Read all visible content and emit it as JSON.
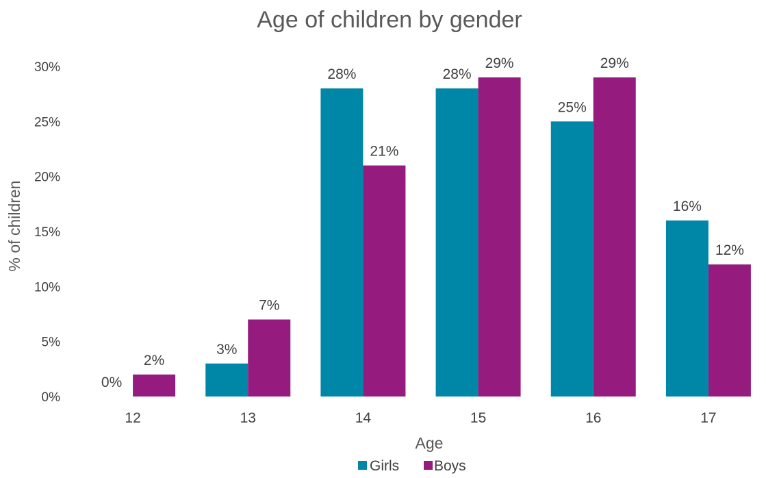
{
  "chart_data": {
    "type": "bar",
    "title": "Age of children by gender",
    "xlabel": "Age",
    "ylabel": "% of children",
    "categories": [
      "12",
      "13",
      "14",
      "15",
      "16",
      "17"
    ],
    "series": [
      {
        "name": "Girls",
        "color": "#0087A8",
        "values": [
          0,
          3,
          28,
          28,
          25,
          16
        ],
        "labels": [
          "0%",
          "3%",
          "28%",
          "28%",
          "25%",
          "16%"
        ]
      },
      {
        "name": "Boys",
        "color": "#951B7E",
        "values": [
          2,
          7,
          21,
          29,
          29,
          12
        ],
        "labels": [
          "2%",
          "7%",
          "21%",
          "29%",
          "29%",
          "12%"
        ]
      }
    ],
    "ylim": [
      0,
      30
    ],
    "yticks": [
      0,
      5,
      10,
      15,
      20,
      25,
      30
    ],
    "ytick_labels": [
      "0%",
      "5%",
      "10%",
      "15%",
      "20%",
      "25%",
      "30%"
    ],
    "grid": false,
    "legend_position": "bottom"
  }
}
